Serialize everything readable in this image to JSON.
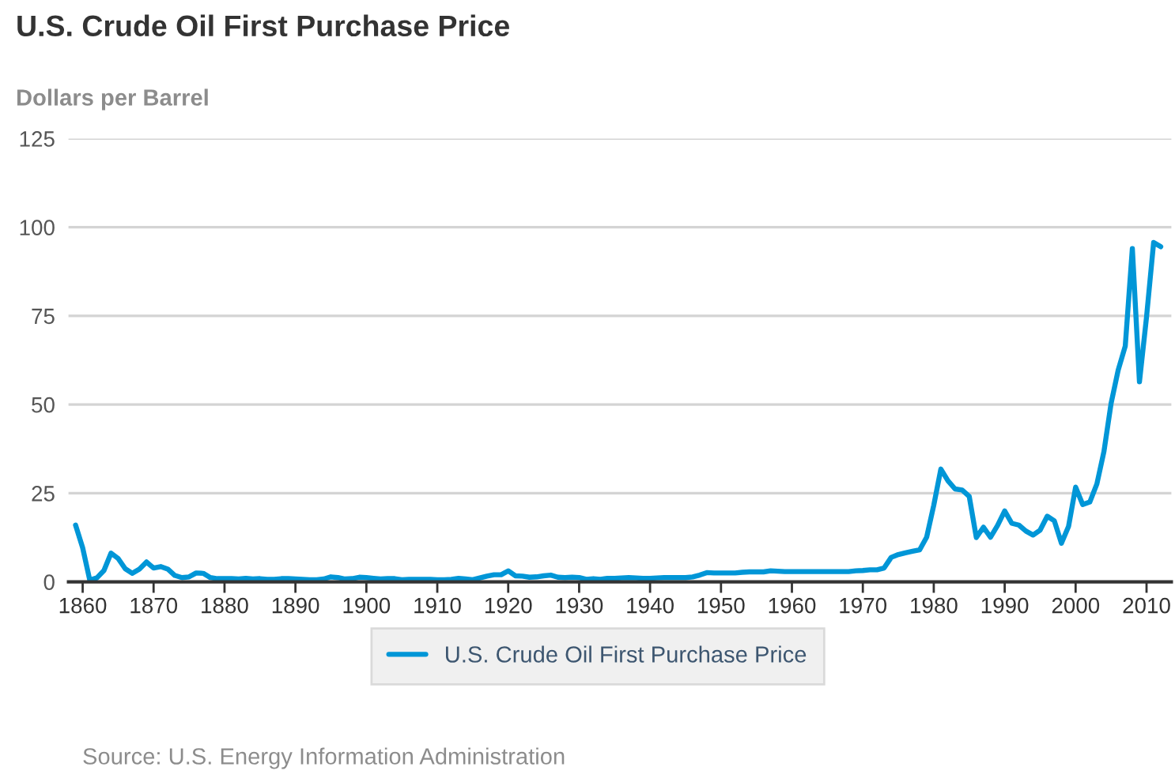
{
  "chart_data": {
    "type": "line",
    "title": "U.S. Crude Oil First Purchase Price",
    "ylabel": "Dollars per Barrel",
    "x": [
      1859,
      1860,
      1861,
      1862,
      1863,
      1864,
      1865,
      1866,
      1867,
      1868,
      1869,
      1870,
      1871,
      1872,
      1873,
      1874,
      1875,
      1876,
      1877,
      1878,
      1879,
      1880,
      1881,
      1882,
      1883,
      1884,
      1885,
      1886,
      1887,
      1888,
      1889,
      1890,
      1891,
      1892,
      1893,
      1894,
      1895,
      1896,
      1897,
      1898,
      1899,
      1900,
      1901,
      1902,
      1903,
      1904,
      1905,
      1906,
      1907,
      1908,
      1909,
      1910,
      1911,
      1912,
      1913,
      1914,
      1915,
      1916,
      1917,
      1918,
      1919,
      1920,
      1921,
      1922,
      1923,
      1924,
      1925,
      1926,
      1927,
      1928,
      1929,
      1930,
      1931,
      1932,
      1933,
      1934,
      1935,
      1936,
      1937,
      1938,
      1939,
      1940,
      1941,
      1942,
      1943,
      1944,
      1945,
      1946,
      1947,
      1948,
      1949,
      1950,
      1951,
      1952,
      1953,
      1954,
      1955,
      1956,
      1957,
      1958,
      1959,
      1960,
      1961,
      1962,
      1963,
      1964,
      1965,
      1966,
      1967,
      1968,
      1969,
      1970,
      1971,
      1972,
      1973,
      1974,
      1975,
      1976,
      1977,
      1978,
      1979,
      1980,
      1981,
      1982,
      1983,
      1984,
      1985,
      1986,
      1987,
      1988,
      1989,
      1990,
      1991,
      1992,
      1993,
      1994,
      1995,
      1996,
      1997,
      1998,
      1999,
      2000,
      2001,
      2002,
      2003,
      2004,
      2005,
      2006,
      2007,
      2008,
      2009,
      2010,
      2011,
      2012
    ],
    "series": [
      {
        "name": "U.S. Crude Oil First Purchase Price",
        "color": "#0096d7",
        "values": [
          16.0,
          9.6,
          0.5,
          1.1,
          3.2,
          8.1,
          6.6,
          3.7,
          2.4,
          3.6,
          5.6,
          3.9,
          4.3,
          3.6,
          1.8,
          1.2,
          1.4,
          2.5,
          2.4,
          1.2,
          0.9,
          0.9,
          0.9,
          0.8,
          1.0,
          0.8,
          0.9,
          0.7,
          0.7,
          0.9,
          0.9,
          0.8,
          0.7,
          0.6,
          0.6,
          0.8,
          1.4,
          1.2,
          0.8,
          0.9,
          1.3,
          1.2,
          1.0,
          0.8,
          0.9,
          0.9,
          0.6,
          0.7,
          0.7,
          0.7,
          0.7,
          0.6,
          0.6,
          0.7,
          1.0,
          0.8,
          0.6,
          1.1,
          1.6,
          2.0,
          2.0,
          3.1,
          1.7,
          1.6,
          1.3,
          1.4,
          1.7,
          1.9,
          1.3,
          1.2,
          1.3,
          1.2,
          0.7,
          0.9,
          0.7,
          1.0,
          1.0,
          1.1,
          1.2,
          1.1,
          1.0,
          1.0,
          1.1,
          1.2,
          1.2,
          1.2,
          1.2,
          1.4,
          1.9,
          2.6,
          2.5,
          2.5,
          2.5,
          2.5,
          2.7,
          2.8,
          2.8,
          2.8,
          3.1,
          3.0,
          2.9,
          2.9,
          2.9,
          2.9,
          2.9,
          2.9,
          2.9,
          2.9,
          2.9,
          2.9,
          3.1,
          3.2,
          3.4,
          3.4,
          3.9,
          6.9,
          7.7,
          8.2,
          8.6,
          9.0,
          12.6,
          21.6,
          31.8,
          28.5,
          26.2,
          25.9,
          24.1,
          12.5,
          15.4,
          12.6,
          15.9,
          20.0,
          16.5,
          16.0,
          14.3,
          13.2,
          14.6,
          18.5,
          17.2,
          10.9,
          15.6,
          26.7,
          21.8,
          22.5,
          27.6,
          36.8,
          50.3,
          59.7,
          66.5,
          94.0,
          56.4,
          74.7,
          95.7,
          94.5
        ]
      }
    ],
    "xlim": [
      1858,
      2013.5
    ],
    "xticks": [
      1860,
      1870,
      1880,
      1890,
      1900,
      1910,
      1920,
      1930,
      1940,
      1950,
      1960,
      1970,
      1980,
      1990,
      2000,
      2010
    ],
    "ylim": [
      0,
      125
    ],
    "yticks": [
      0,
      25,
      50,
      75,
      100,
      125
    ],
    "grid": "y",
    "legend": "bottom",
    "line_style": "solid",
    "annotations": [
      "Source: U.S. Energy Information Administration"
    ]
  }
}
